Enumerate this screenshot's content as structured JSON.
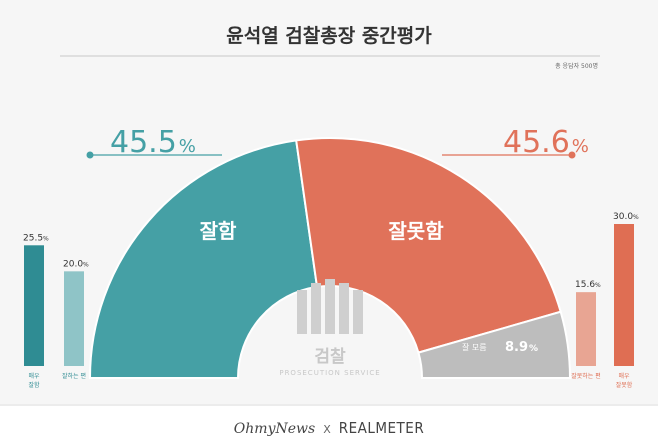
{
  "chart_data": {
    "type": "pie",
    "title": "윤석열 검찰총장 중간평가",
    "subtitle": "총 응답자 500명",
    "half_donut": [
      {
        "label": "잘함",
        "value": 45.5,
        "color": "#45a0a5"
      },
      {
        "label": "잘못함",
        "value": 45.6,
        "color": "#e0725a"
      },
      {
        "label": "잘 모름",
        "value": 8.9,
        "color": "#bdbdbd"
      }
    ],
    "big_labels": {
      "good": {
        "number": "45.5",
        "unit": "%"
      },
      "bad": {
        "number": "45.6",
        "unit": "%"
      },
      "unknown": {
        "label": "잘 모름",
        "number": "8.9",
        "unit": "%"
      }
    },
    "bars": [
      {
        "label": "매우 잘함",
        "value": 25.5,
        "display": "25.5",
        "color": "#2f8c93"
      },
      {
        "label": "잘하는 편",
        "value": 20.0,
        "display": "20.0",
        "color": "#8fc4c7"
      },
      {
        "label": "잘못하는 편",
        "value": 15.6,
        "display": "15.6",
        "color": "#e8a593"
      },
      {
        "label": "매우 잘못함",
        "value": 30.0,
        "display": "30.0",
        "color": "#df6e53"
      }
    ],
    "bar_unit": "%",
    "watermark": {
      "title": "검찰",
      "subtitle": "PROSECUTION SERVICE"
    }
  },
  "footer": {
    "left": "OhmyNews",
    "sep": "X",
    "right": "REALMETER"
  },
  "colors": {
    "teal": "#45a0a5",
    "coral": "#e0725a",
    "gray": "#bdbdbd",
    "title": "#333333"
  }
}
